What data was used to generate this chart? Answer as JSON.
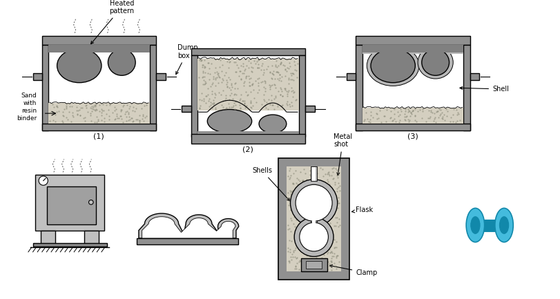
{
  "bg_color": "#ffffff",
  "gray_frame": "#909090",
  "gray_pattern": "#808080",
  "gray_light": "#c0c0c0",
  "gray_shell": "#b8b8b8",
  "sand_color": "#d4cfc0",
  "teal": "#22aacc",
  "teal_dark": "#1188aa",
  "teal_mid": "#44bbdd",
  "lw": 1.5,
  "labels": {
    "heated_pattern": "Heated\npattern",
    "dump_box": "Dump\nbox",
    "sand_resin": "Sand\nwith\nresin\nbinder",
    "shell": "Shell",
    "shells": "Shells",
    "metal_shot": "Metal\nshot",
    "flask": "Flask",
    "clamp": "Clamp",
    "num1": "(1)",
    "num2": "(2)",
    "num3": "(3)"
  }
}
